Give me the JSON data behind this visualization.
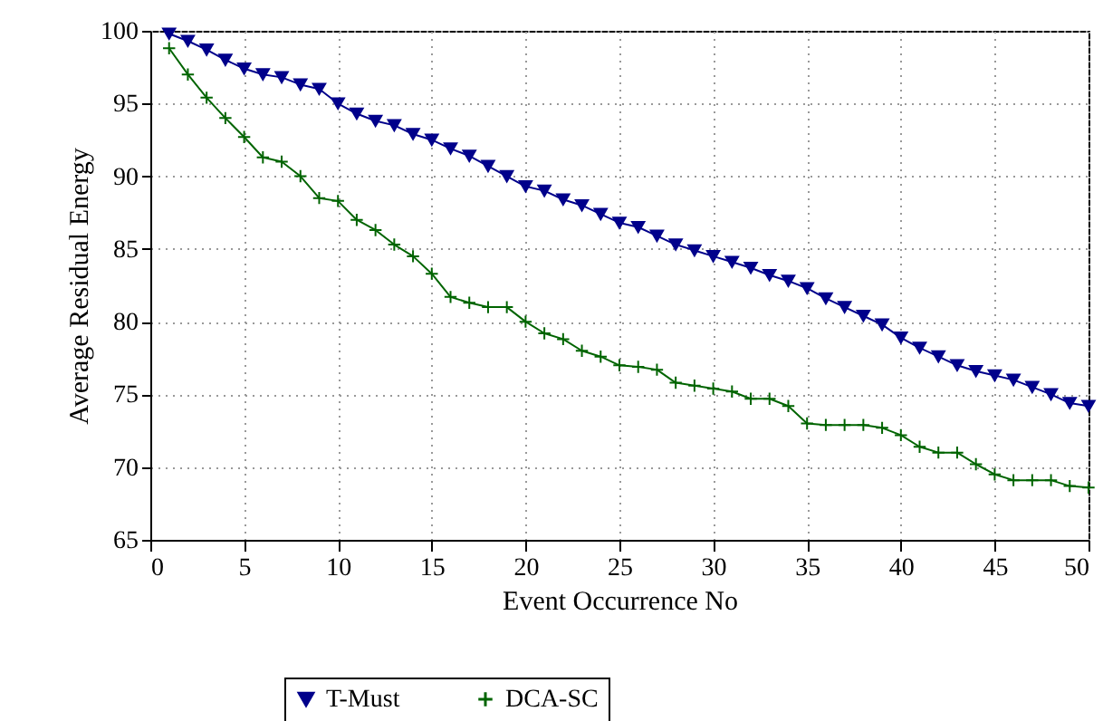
{
  "chart_data": {
    "type": "line",
    "xlabel": "Event Occurrence No",
    "ylabel": "Average Residual Energy",
    "x": [
      1,
      2,
      3,
      4,
      5,
      6,
      7,
      8,
      9,
      10,
      11,
      12,
      13,
      14,
      15,
      16,
      17,
      18,
      19,
      20,
      21,
      22,
      23,
      24,
      25,
      26,
      27,
      28,
      29,
      30,
      31,
      32,
      33,
      34,
      35,
      36,
      37,
      38,
      39,
      40,
      41,
      42,
      43,
      44,
      45,
      46,
      47,
      48,
      49,
      50
    ],
    "series": [
      {
        "name": "T-Must",
        "color": "#00008b",
        "marker": "triangle",
        "values": [
          99.8,
          99.3,
          98.7,
          98.0,
          97.4,
          97.0,
          96.8,
          96.3,
          96.0,
          95.0,
          94.3,
          93.8,
          93.5,
          92.9,
          92.5,
          91.9,
          91.4,
          90.7,
          90.0,
          89.3,
          89.0,
          88.4,
          88.0,
          87.4,
          86.8,
          86.5,
          85.9,
          85.3,
          84.9,
          84.5,
          84.1,
          83.7,
          83.2,
          82.8,
          82.3,
          81.6,
          81.0,
          80.4,
          79.8,
          78.9,
          78.2,
          77.6,
          77.0,
          76.6,
          76.3,
          76.0,
          75.5,
          75.0,
          74.4,
          74.2
        ]
      },
      {
        "name": "DCA-SC",
        "color": "#006400",
        "marker": "cross",
        "values": [
          98.8,
          97.0,
          95.4,
          94.0,
          92.7,
          91.3,
          91.0,
          90.0,
          88.5,
          88.3,
          87.0,
          86.3,
          85.3,
          84.5,
          83.3,
          81.7,
          81.3,
          81.0,
          81.0,
          80.0,
          79.2,
          78.8,
          78.0,
          77.6,
          77.0,
          76.9,
          76.7,
          75.8,
          75.6,
          75.4,
          75.2,
          74.7,
          74.7,
          74.2,
          73.0,
          72.9,
          72.9,
          72.9,
          72.7,
          72.2,
          71.4,
          71.0,
          71.0,
          70.2,
          69.5,
          69.1,
          69.1,
          69.1,
          68.7,
          68.6
        ]
      }
    ],
    "xlim": [
      0,
      50
    ],
    "xticks": [
      0,
      5,
      10,
      15,
      20,
      25,
      30,
      35,
      40,
      45,
      50
    ],
    "ylim": [
      65,
      100
    ],
    "yticks": [
      65,
      70,
      75,
      80,
      85,
      90,
      95,
      100
    ],
    "grid": true,
    "legend": "bottom",
    "line_style": "solid"
  }
}
